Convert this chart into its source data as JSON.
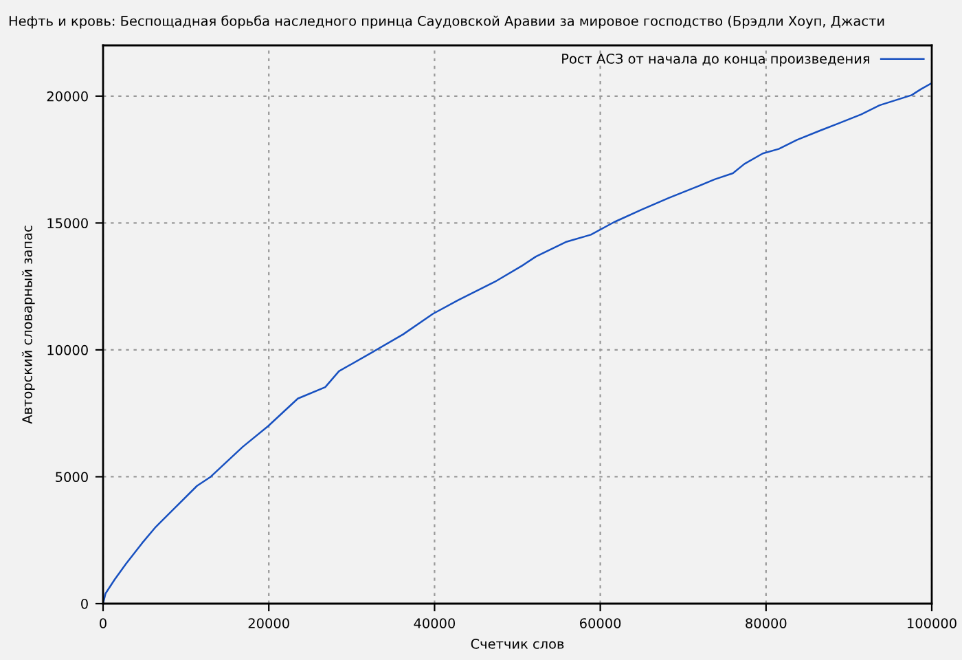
{
  "chart_data": {
    "type": "line",
    "title": "Нефть и кровь: Беспощадная борьба наследного принца Саудовской Аравии за мировое господство (Брэдли Хоуп, Джасти",
    "xlabel": "Счетчик слов",
    "ylabel": "Авторский словарный запас",
    "series": [
      {
        "name": "Рост АСЗ от начала до конца произведения",
        "color": "#1750c0",
        "x": [
          0,
          300,
          1380,
          2770,
          4700,
          6350,
          8570,
          11330,
          12990,
          16860,
          19900,
          23500,
          26810,
          28470,
          32340,
          36200,
          39800,
          42840,
          47260,
          50580,
          52240,
          55830,
          58870,
          61640,
          64950,
          68270,
          71590,
          73800,
          76000,
          77400,
          79600,
          81540,
          83750,
          86510,
          88720,
          91490,
          93700,
          97570,
          98670,
          99880
        ],
        "values": [
          0,
          400,
          940,
          1570,
          2380,
          3020,
          3740,
          4640,
          5000,
          6180,
          6990,
          8080,
          8530,
          9160,
          9880,
          10610,
          11420,
          11960,
          12680,
          13320,
          13680,
          14250,
          14540,
          15030,
          15520,
          15990,
          16420,
          16720,
          16960,
          17330,
          17740,
          17920,
          18280,
          18640,
          18920,
          19280,
          19640,
          20040,
          20270,
          20490
        ]
      }
    ],
    "xlim": [
      0,
      100000
    ],
    "xticks": [
      0,
      20000,
      40000,
      60000,
      80000,
      100000
    ],
    "ylim": [
      0,
      22000
    ],
    "yticks": [
      0,
      5000,
      10000,
      15000,
      20000
    ],
    "grid": true,
    "legend": "top right",
    "line_style": "solid",
    "marker": "none"
  }
}
